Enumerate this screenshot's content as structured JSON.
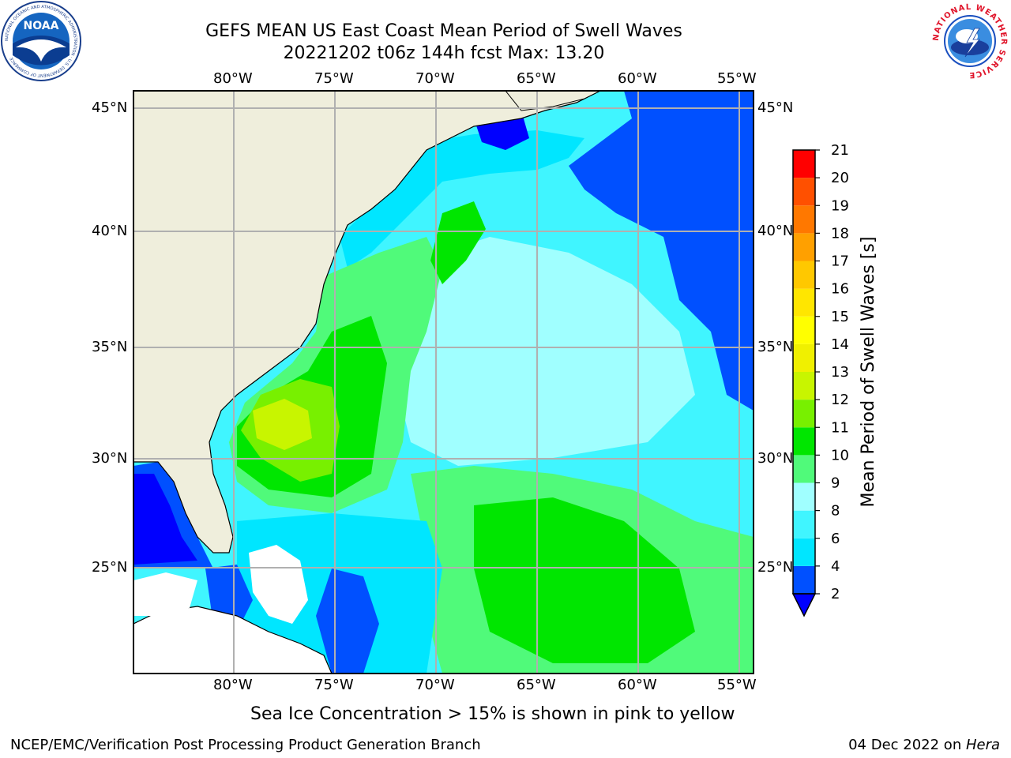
{
  "header": {
    "title_line1": "GEFS MEAN US East Coast Mean Period of Swell Waves",
    "title_line2": "20221202 t06z 144h fcst   Max: 13.20"
  },
  "logos": {
    "noaa_text": "NOAA",
    "noaa_ring_text": "NATIONAL OCEANIC AND ATMOSPHERIC ADMINISTRATION · U.S. DEPARTMENT OF COMMERCE",
    "nws_ring_text": "NATIONAL WEATHER SERVICE"
  },
  "map": {
    "lon_labels": [
      "80°W",
      "75°W",
      "70°W",
      "65°W",
      "60°W",
      "55°W"
    ],
    "lat_labels": [
      "45°N",
      "40°N",
      "35°N",
      "30°N",
      "25°N"
    ],
    "land_color": "#efeedc",
    "grid_color": "#b0b0b0"
  },
  "colorbar": {
    "label": "Mean Period of Swell Waves [s]",
    "ticks": [
      "2",
      "4",
      "6",
      "8",
      "9",
      "10",
      "11",
      "12",
      "13",
      "14",
      "15",
      "16",
      "17",
      "18",
      "19",
      "20",
      "21"
    ],
    "colors": [
      "#0050ff",
      "#00e6ff",
      "#40f5ff",
      "#a0ffff",
      "#50fa7a",
      "#00e600",
      "#78f000",
      "#c8f500",
      "#f0f000",
      "#ffff00",
      "#ffe600",
      "#ffc800",
      "#ffa000",
      "#ff7800",
      "#ff5000",
      "#ff0000"
    ],
    "under_color": "#0000ff"
  },
  "footer": {
    "sea_ice_note": "Sea Ice Concentration > 15% is shown in pink to yellow",
    "credit": "NCEP/EMC/Verification Post Processing Product Generation Branch",
    "date_text": "04 Dec 2022 on ",
    "machine": "Hera"
  }
}
